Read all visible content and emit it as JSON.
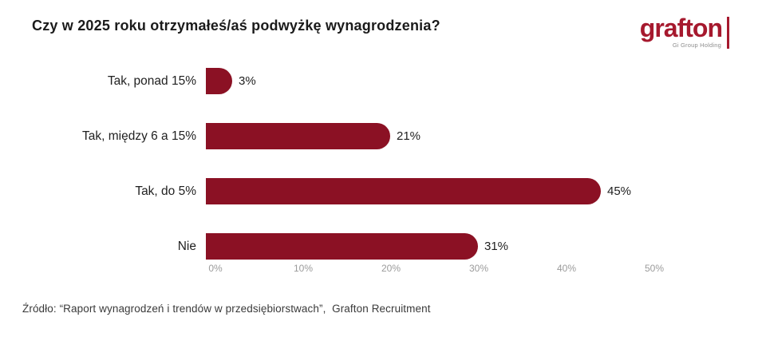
{
  "title": "Czy w 2025 roku otrzymałeś/aś podwyżkę wynagrodzenia?",
  "logo": {
    "text": "grafton",
    "subtext": "Gi Group Holding",
    "brand_color": "#A6192E"
  },
  "source": "Źródło: “Raport wynagrodzeń i trendów w przedsiębiorstwach”,  Grafton Recruitment",
  "chart_data": {
    "type": "bar",
    "orientation": "horizontal",
    "title": "Czy w 2025 roku otrzymałeś/aś podwyżkę wynagrodzenia?",
    "categories": [
      "Tak, ponad 15%",
      "Tak, między 6 a 15%",
      "Tak, do 5%",
      "Nie"
    ],
    "values": [
      3,
      21,
      45,
      31
    ],
    "value_labels": [
      "3%",
      "21%",
      "45%",
      "31%"
    ],
    "bar_color": "#8B1124",
    "xlabel": "",
    "ylabel": "",
    "xlim": [
      0,
      50
    ],
    "x_ticks": [
      "0%",
      "10%",
      "20%",
      "30%",
      "40%",
      "50%"
    ],
    "x_tick_values": [
      0,
      10,
      20,
      30,
      40,
      50
    ],
    "grid": false,
    "legend": false
  }
}
